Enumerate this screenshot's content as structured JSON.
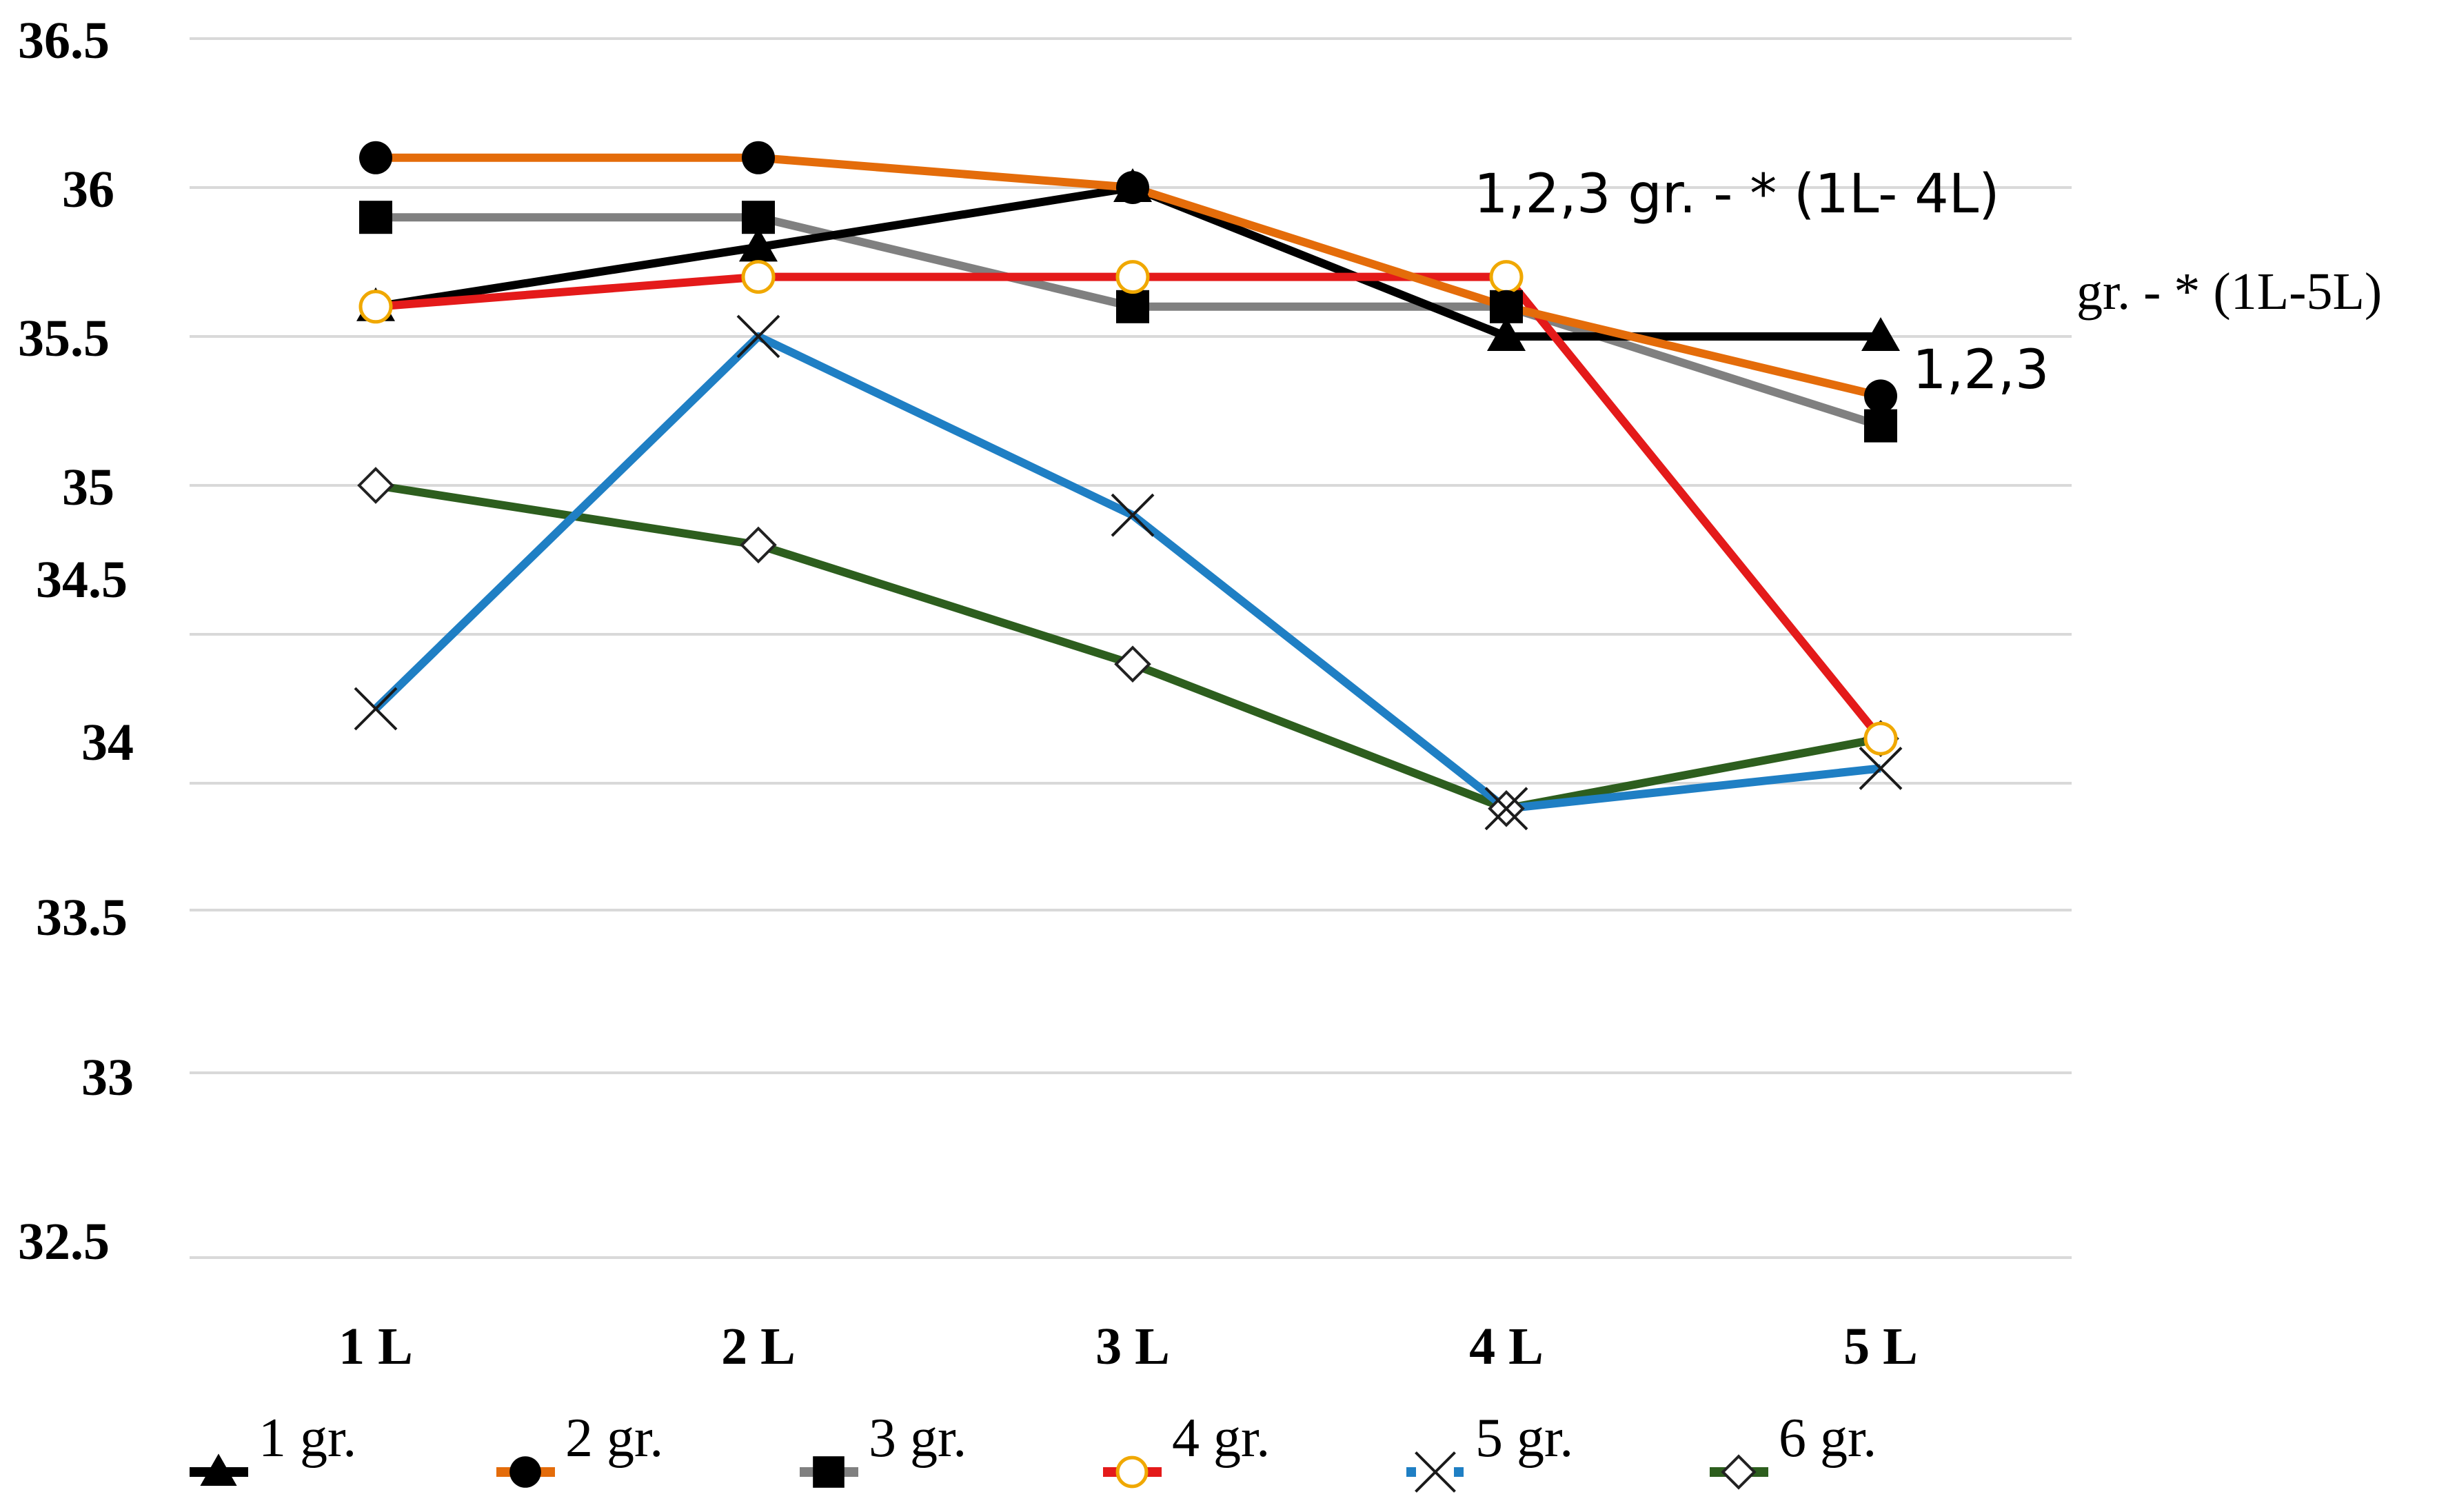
{
  "chart_data": {
    "type": "line",
    "title": "",
    "xlabel": "",
    "ylabel": "",
    "categories": [
      "1 L",
      "2 L",
      "3 L",
      "4 L",
      "5 L"
    ],
    "yticks": [
      "36.5",
      "36",
      "35.5",
      "35",
      "34.5",
      "34",
      "33.5",
      "33",
      "32.5"
    ],
    "series": [
      {
        "name": "1 gr.",
        "color": "#000000",
        "marker": "triangle",
        "values": [
          35.6,
          35.8,
          36.0,
          35.5,
          35.5
        ]
      },
      {
        "name": "2 gr.",
        "color": "#e46c0a",
        "marker": "circle",
        "values": [
          36.1,
          36.1,
          36.0,
          35.6,
          35.3
        ]
      },
      {
        "name": "3 gr.",
        "color": "#808080",
        "marker": "square",
        "values": [
          35.9,
          35.9,
          35.6,
          35.6,
          35.2
        ]
      },
      {
        "name": "4 gr.",
        "color": "#e41a1a",
        "marker": "hollow-circle",
        "values": [
          35.6,
          35.7,
          35.7,
          35.7,
          34.15
        ]
      },
      {
        "name": "5 gr.",
        "color": "#1f7fc4",
        "marker": "x",
        "values": [
          34.25,
          35.5,
          34.9,
          33.9,
          34.05
        ]
      },
      {
        "name": "6 gr.",
        "color": "#2d5e1e",
        "marker": "hollow-diamond",
        "values": [
          35.0,
          34.8,
          34.4,
          33.9,
          34.15
        ]
      }
    ],
    "legend_position": "bottom",
    "annotations": {
      "top": "1,2,3 gr. - * (1L- 4L)",
      "right": "gr. - * (1L-5L)",
      "near_5L": "1,2,3"
    }
  }
}
